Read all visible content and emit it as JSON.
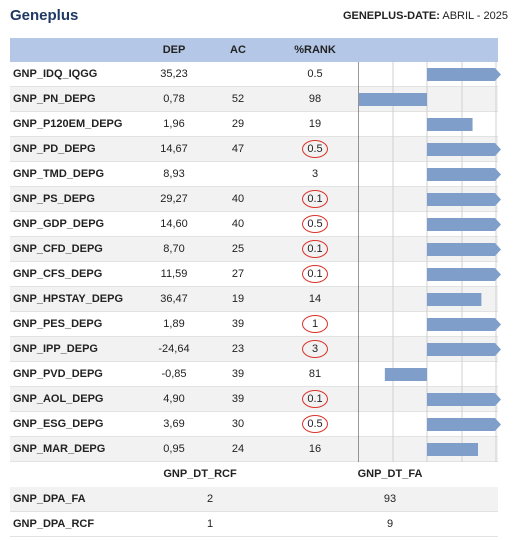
{
  "header": {
    "title": "Geneplus",
    "date_key": "GENEPLUS-DATE:",
    "date_value": "ABRIL - 2025"
  },
  "table": {
    "columns": {
      "dep": "DEP",
      "ac": "AC",
      "rank": "%RANK"
    },
    "rows": [
      {
        "name": "GNP_IDQ_IQGG",
        "dep": "35,23",
        "ac": "",
        "rank": "0.5",
        "circled": false,
        "bar": 100
      },
      {
        "name": "GNP_PN_DEPG",
        "dep": "0,78",
        "ac": "52",
        "rank": "98",
        "circled": false,
        "bar": -100
      },
      {
        "name": "GNP_P120EM_DEPG",
        "dep": "1,96",
        "ac": "29",
        "rank": "19",
        "circled": false,
        "bar": 67
      },
      {
        "name": "GNP_PD_DEPG",
        "dep": "14,67",
        "ac": "47",
        "rank": "0.5",
        "circled": true,
        "bar": 100
      },
      {
        "name": "GNP_TMD_DEPG",
        "dep": "8,93",
        "ac": "",
        "rank": "3",
        "circled": false,
        "bar": 100
      },
      {
        "name": "GNP_PS_DEPG",
        "dep": "29,27",
        "ac": "40",
        "rank": "0.1",
        "circled": true,
        "bar": 100
      },
      {
        "name": "GNP_GDP_DEPG",
        "dep": "14,60",
        "ac": "40",
        "rank": "0.5",
        "circled": true,
        "bar": 100
      },
      {
        "name": "GNP_CFD_DEPG",
        "dep": "8,70",
        "ac": "25",
        "rank": "0.1",
        "circled": true,
        "bar": 100
      },
      {
        "name": "GNP_CFS_DEPG",
        "dep": "11,59",
        "ac": "27",
        "rank": "0.1",
        "circled": true,
        "bar": 100
      },
      {
        "name": "GNP_HPSTAY_DEPG",
        "dep": "36,47",
        "ac": "19",
        "rank": "14",
        "circled": false,
        "bar": 80
      },
      {
        "name": "GNP_PES_DEPG",
        "dep": "1,89",
        "ac": "39",
        "rank": "1",
        "circled": true,
        "bar": 100
      },
      {
        "name": "GNP_IPP_DEPG",
        "dep": "-24,64",
        "ac": "23",
        "rank": "3",
        "circled": true,
        "bar": 100
      },
      {
        "name": "GNP_PVD_DEPG",
        "dep": "-0,85",
        "ac": "39",
        "rank": "81",
        "circled": false,
        "bar": -62
      },
      {
        "name": "GNP_AOL_DEPG",
        "dep": "4,90",
        "ac": "39",
        "rank": "0.1",
        "circled": true,
        "bar": 100
      },
      {
        "name": "GNP_ESG_DEPG",
        "dep": "3,69",
        "ac": "30",
        "rank": "0.5",
        "circled": true,
        "bar": 100
      },
      {
        "name": "GNP_MAR_DEPG",
        "dep": "0,95",
        "ac": "24",
        "rank": "16",
        "circled": false,
        "bar": 75
      }
    ]
  },
  "summary": {
    "columns": {
      "rcf": "GNP_DT_RCF",
      "fa": "GNP_DT_FA"
    },
    "rows": [
      {
        "name": "GNP_DPA_FA",
        "rcf": "2",
        "fa": "93"
      },
      {
        "name": "GNP_DPA_RCF",
        "rcf": "1",
        "fa": "9"
      }
    ]
  },
  "colors": {
    "title": "#1f3864",
    "header_bg": "#b4c7e7",
    "bar": "#7f9fca",
    "circle": "#d9342b"
  }
}
